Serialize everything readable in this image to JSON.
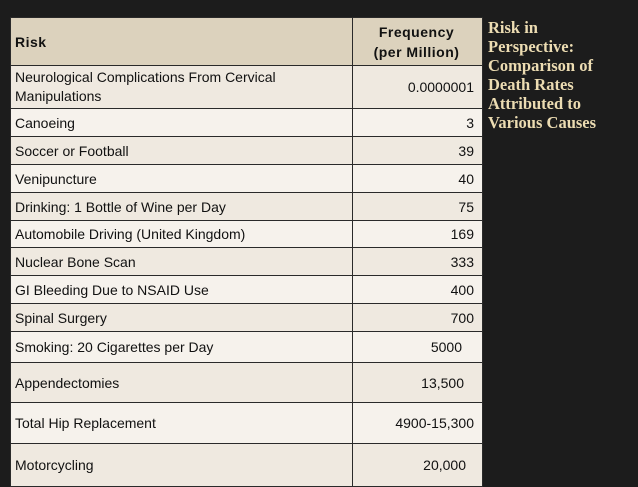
{
  "table": {
    "headers": {
      "risk": "Risk",
      "frequency": [
        "Frequency",
        "(per Million)"
      ]
    },
    "rows": [
      {
        "risk": [
          "Neurological Complications From Cervical",
          "Manipulations"
        ],
        "frequency": "0.0000001"
      },
      {
        "risk": "Canoeing",
        "frequency": "3"
      },
      {
        "risk": "Soccer or Football",
        "frequency": "39"
      },
      {
        "risk": "Venipuncture",
        "frequency": "40"
      },
      {
        "risk": "Drinking: 1 Bottle of Wine per Day",
        "frequency": "75"
      },
      {
        "risk": "Automobile Driving (United Kingdom)",
        "frequency": "169"
      },
      {
        "risk": "Nuclear Bone Scan",
        "frequency": "333"
      },
      {
        "risk": "GI Bleeding Due to NSAID Use",
        "frequency": "400"
      },
      {
        "risk": "Spinal Surgery",
        "frequency": "700"
      },
      {
        "risk": "Smoking: 20 Cigarettes per Day",
        "frequency": "5000"
      },
      {
        "risk": "Appendectomies",
        "frequency": "13,500"
      },
      {
        "risk": "Total Hip Replacement",
        "frequency": "4900-15,300"
      },
      {
        "risk": "Motorcycling",
        "frequency": "20,000"
      }
    ]
  },
  "title": [
    "Risk in",
    "Perspective:",
    "Comparison of",
    "Death Rates",
    "Attributed to",
    "Various Causes"
  ],
  "colors": {
    "background": "#1c1c1c",
    "header_fill": "#dcd2bd",
    "row_fill_a": "#efe9e0",
    "row_fill_b": "#f6f2ec",
    "title_text": "#ecdcb2"
  }
}
